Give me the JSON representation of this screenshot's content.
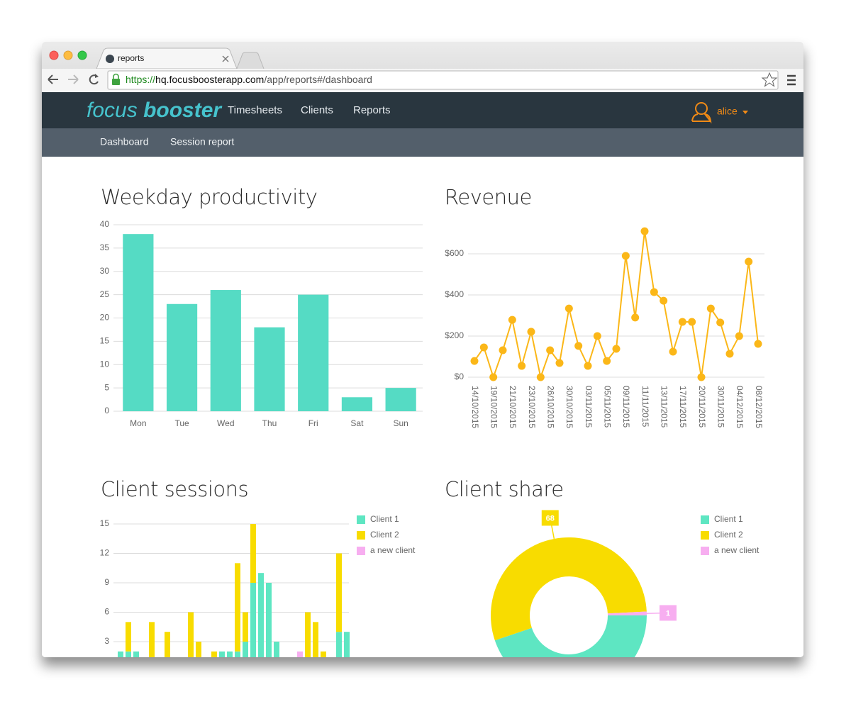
{
  "browser": {
    "tab_title": "reports",
    "url_scheme": "https://",
    "url_host": "hq.focusboosterapp.com",
    "url_path": "/app/reports#/dashboard"
  },
  "nav": {
    "brand": [
      "focus",
      "booster"
    ],
    "links": [
      "Timesheets",
      "Clients",
      "Reports"
    ],
    "user": "alice"
  },
  "subnav": [
    "Dashboard",
    "Session report"
  ],
  "chart_data": [
    {
      "type": "bar",
      "title": "Weekday productivity",
      "categories": [
        "Mon",
        "Tue",
        "Wed",
        "Thu",
        "Fri",
        "Sat",
        "Sun"
      ],
      "values": [
        38,
        23,
        26,
        18,
        25,
        3,
        5
      ],
      "color": "#55dbc4",
      "ylim": [
        0,
        40
      ],
      "yticks": [
        0,
        5,
        10,
        15,
        20,
        25,
        30,
        35,
        40
      ],
      "grid": true
    },
    {
      "type": "line",
      "title": "Revenue",
      "categories": [
        "14/10/2015",
        null,
        "19/10/2015",
        null,
        "21/10/2015",
        null,
        "23/10/2015",
        null,
        "26/10/2015",
        null,
        "30/10/2015",
        null,
        "03/11/2015",
        null,
        "05/11/2015",
        null,
        "09/11/2015",
        null,
        "11/11/2015",
        null,
        "13/11/2015",
        null,
        "17/11/2015",
        null,
        "20/11/2015",
        null,
        "30/11/2015",
        null,
        "04/12/2015",
        null,
        "08/12/2015"
      ],
      "values": [
        79,
        145,
        0,
        131,
        279,
        55,
        221,
        0,
        131,
        69,
        334,
        152,
        55,
        200,
        79,
        138,
        590,
        290,
        710,
        414,
        372,
        124,
        269,
        269,
        0,
        334,
        266,
        114,
        200,
        562,
        162
      ],
      "color": "#fbb718",
      "ylim": [
        0,
        750
      ],
      "yticks": [
        {
          "value": 0,
          "label": "$0"
        },
        {
          "value": 200,
          "label": "$200"
        },
        {
          "value": 400,
          "label": "$400"
        },
        {
          "value": 600,
          "label": "$600"
        }
      ],
      "grid": true
    },
    {
      "type": "stacked_bar",
      "title": "Client sessions",
      "series": [
        {
          "name": "Client 1",
          "color": "#5ee6c2",
          "values": [
            2,
            2,
            2,
            0,
            0,
            0,
            0,
            0,
            0,
            0,
            0,
            0,
            0,
            2,
            2,
            2,
            3,
            9,
            10,
            9,
            3,
            0,
            0,
            0,
            0,
            0,
            0,
            0,
            4,
            4
          ]
        },
        {
          "name": "Client 2",
          "color": "#f8dc00",
          "values": [
            0,
            3,
            0,
            0,
            5,
            0,
            4,
            0,
            0,
            6,
            3,
            0,
            2,
            0,
            0,
            9,
            3,
            6,
            0,
            0,
            0,
            0,
            0,
            0,
            6,
            5,
            2,
            0,
            8,
            0
          ]
        },
        {
          "name": "a new client",
          "color": "#f7aef0",
          "values": [
            0,
            0,
            0,
            0,
            0,
            0,
            0,
            0,
            0,
            0,
            0,
            0,
            0,
            0,
            0,
            0,
            0,
            0,
            0,
            0,
            0,
            0,
            0,
            2,
            0,
            0,
            0,
            0,
            0,
            0
          ]
        }
      ],
      "ylim": [
        0,
        15.6
      ],
      "yticks": [
        3,
        6,
        9,
        12,
        15
      ],
      "grid": true,
      "legend": "right"
    },
    {
      "type": "donut",
      "title": "Client share",
      "categories": [
        "Client 1",
        "Client 2",
        "a new client"
      ],
      "values": [
        56,
        68,
        1
      ],
      "value_labels": [
        null,
        "68",
        "1"
      ],
      "colors": [
        "#5ee6c2",
        "#f8dc00",
        "#f7aef0"
      ],
      "legend": "right"
    }
  ]
}
